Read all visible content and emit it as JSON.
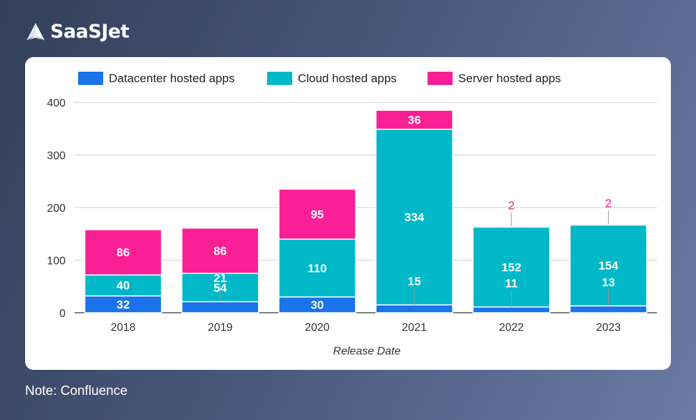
{
  "brand": {
    "name": "SaaSJet",
    "icon": "paper-plane-icon"
  },
  "note": "Note: Confluence",
  "colors": {
    "datacenter": "#1a73e8",
    "cloud": "#00b8c8",
    "server": "#f91f94",
    "label_light": "#ffffff",
    "label_outside": "#f01f8f"
  },
  "chart_data": {
    "type": "bar",
    "stacked": true,
    "categories": [
      "2018",
      "2019",
      "2020",
      "2021",
      "2022",
      "2023"
    ],
    "series": [
      {
        "name": "Datacenter hosted apps",
        "values": [
          32,
          21,
          30,
          15,
          11,
          13
        ],
        "labels": [
          "32",
          "21",
          "30",
          "15",
          "11",
          "13"
        ]
      },
      {
        "name": "Cloud hosted apps",
        "values": [
          40,
          54,
          110,
          334,
          152,
          154
        ],
        "labels": [
          "40",
          "54",
          "110",
          "334",
          "152",
          "154"
        ]
      },
      {
        "name": "Server hosted apps",
        "values": [
          86,
          86,
          95,
          36,
          2,
          2
        ],
        "labels": [
          "86",
          "86",
          "95",
          "36",
          "2",
          "2"
        ]
      }
    ],
    "xlabel": "Release Date",
    "ylabel": "",
    "ylim": [
      0,
      400
    ],
    "yticks": [
      "0",
      "100",
      "200",
      "300",
      "400"
    ],
    "grid": true,
    "legend_position": "top-left"
  }
}
